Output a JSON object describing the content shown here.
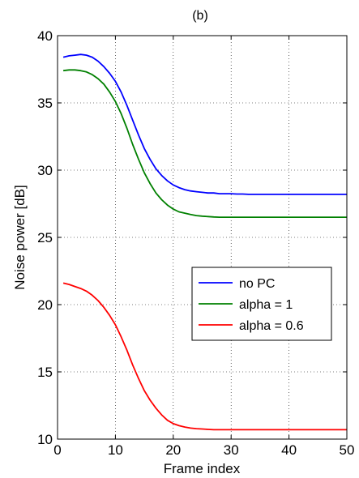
{
  "chart_data": {
    "type": "line",
    "title": "(b)",
    "xlabel": "Frame index",
    "ylabel": "Noise power [dB]",
    "xlim": [
      0,
      50
    ],
    "ylim": [
      10,
      40
    ],
    "xticks": [
      0,
      10,
      20,
      30,
      40,
      50
    ],
    "yticks": [
      10,
      15,
      20,
      25,
      30,
      35,
      40
    ],
    "grid": true,
    "legend_position": "center-right",
    "x": [
      1,
      2,
      3,
      4,
      5,
      6,
      7,
      8,
      9,
      10,
      11,
      12,
      13,
      14,
      15,
      16,
      17,
      18,
      19,
      20,
      21,
      22,
      23,
      24,
      25,
      26,
      27,
      28,
      29,
      30,
      31,
      32,
      33,
      34,
      35,
      36,
      37,
      38,
      39,
      40,
      41,
      42,
      43,
      44,
      45,
      46,
      47,
      48,
      49,
      50
    ],
    "series": [
      {
        "name": "no PC",
        "color": "#0000ff",
        "values": [
          38.4,
          38.5,
          38.55,
          38.6,
          38.55,
          38.4,
          38.1,
          37.7,
          37.2,
          36.6,
          35.8,
          34.8,
          33.7,
          32.6,
          31.6,
          30.8,
          30.1,
          29.6,
          29.2,
          28.9,
          28.7,
          28.55,
          28.45,
          28.4,
          28.35,
          28.3,
          28.3,
          28.25,
          28.25,
          28.25,
          28.22,
          28.22,
          28.2,
          28.2,
          28.2,
          28.2,
          28.2,
          28.2,
          28.2,
          28.2,
          28.2,
          28.2,
          28.2,
          28.2,
          28.2,
          28.2,
          28.2,
          28.2,
          28.2,
          28.2
        ]
      },
      {
        "name": "alpha = 1",
        "color": "#008000",
        "values": [
          37.4,
          37.45,
          37.45,
          37.4,
          37.3,
          37.1,
          36.8,
          36.4,
          35.8,
          35.1,
          34.2,
          33.1,
          31.9,
          30.8,
          29.8,
          29.0,
          28.3,
          27.8,
          27.4,
          27.1,
          26.9,
          26.8,
          26.7,
          26.62,
          26.58,
          26.55,
          26.52,
          26.5,
          26.5,
          26.5,
          26.5,
          26.5,
          26.5,
          26.5,
          26.5,
          26.5,
          26.5,
          26.5,
          26.5,
          26.5,
          26.5,
          26.5,
          26.5,
          26.5,
          26.5,
          26.5,
          26.5,
          26.5,
          26.5,
          26.5
        ]
      },
      {
        "name": "alpha = 0.6",
        "color": "#ff0000",
        "values": [
          21.6,
          21.5,
          21.35,
          21.2,
          21.0,
          20.7,
          20.3,
          19.8,
          19.2,
          18.5,
          17.6,
          16.6,
          15.5,
          14.5,
          13.6,
          12.9,
          12.3,
          11.8,
          11.4,
          11.15,
          11.0,
          10.9,
          10.82,
          10.78,
          10.75,
          10.72,
          10.7,
          10.7,
          10.7,
          10.7,
          10.7,
          10.7,
          10.7,
          10.7,
          10.7,
          10.7,
          10.7,
          10.7,
          10.7,
          10.7,
          10.7,
          10.7,
          10.7,
          10.7,
          10.7,
          10.7,
          10.7,
          10.7,
          10.7,
          10.7
        ]
      }
    ]
  }
}
